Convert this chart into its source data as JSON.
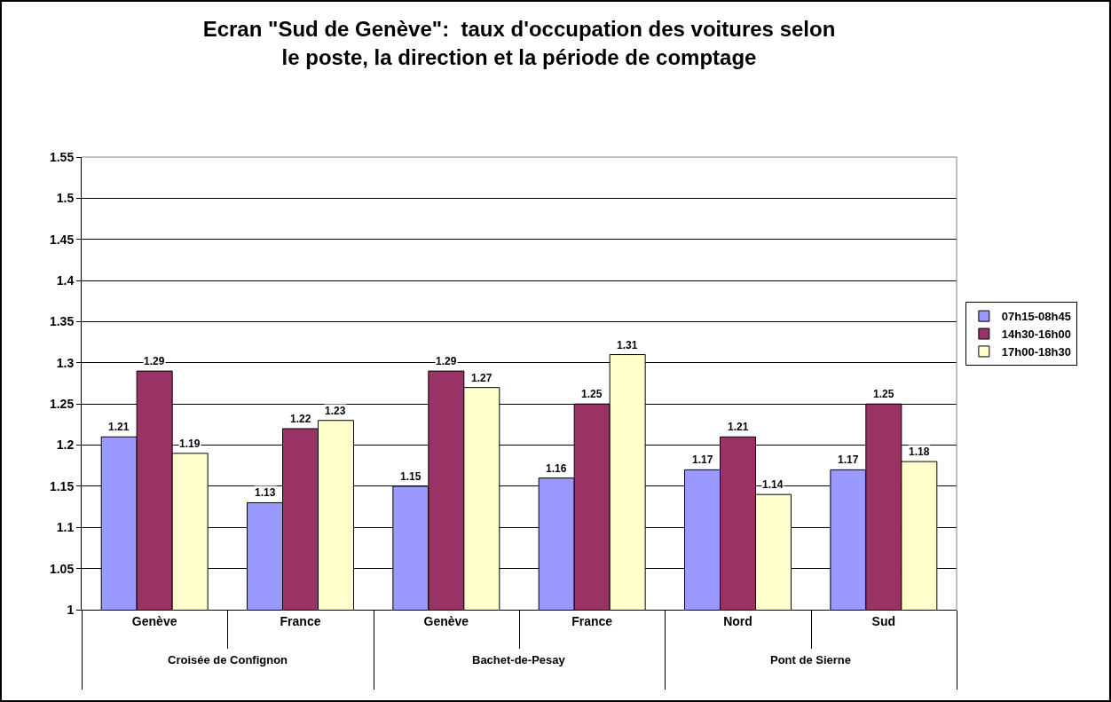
{
  "chart_data": {
    "type": "bar",
    "title": "Ecran \"Sud de Genève\":  taux d'occupation des voitures selon le poste, la direction et la période de comptage",
    "categories": [
      "Genève",
      "France",
      "Genève",
      "France",
      "Nord",
      "Sud"
    ],
    "series": [
      {
        "name": "07h15-08h45",
        "color": "#9999ff",
        "values": [
          1.21,
          1.13,
          1.15,
          1.16,
          1.17,
          1.17
        ]
      },
      {
        "name": "14h30-16h00",
        "color": "#993366",
        "values": [
          1.29,
          1.22,
          1.29,
          1.25,
          1.21,
          1.25
        ]
      },
      {
        "name": "17h00-18h30",
        "color": "#ffffcc",
        "values": [
          1.19,
          1.23,
          1.27,
          1.31,
          1.14,
          1.18
        ]
      }
    ],
    "annotations": [
      "Croisée de Confignon",
      "Bachet-de-Pesay",
      "Pont de Sierne"
    ],
    "ylim": [
      1,
      1.55
    ],
    "yticks": [
      1,
      1.05,
      1.1,
      1.15,
      1.2,
      1.25,
      1.3,
      1.35,
      1.4,
      1.45,
      1.5,
      1.55
    ],
    "grid": "y",
    "legend": "right",
    "data_labels": true
  }
}
